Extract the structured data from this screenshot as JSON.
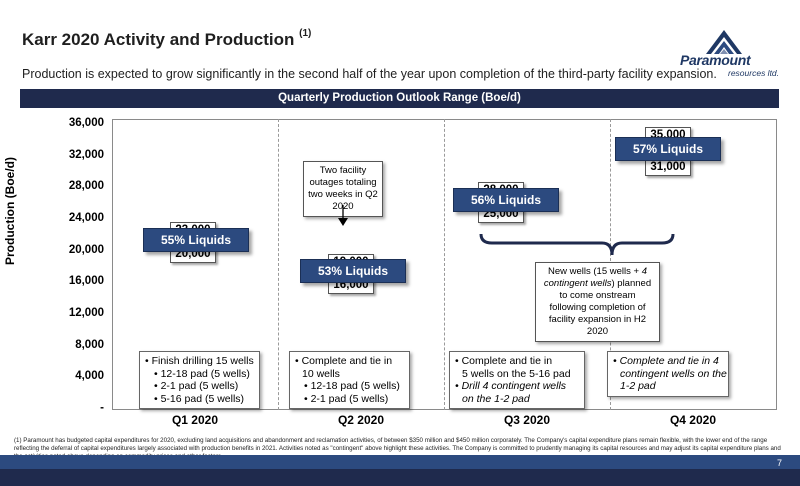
{
  "header": {
    "title": "Karr 2020 Activity and Production",
    "title_sup": "(1)",
    "subtitle": "Production is expected to grow significantly in the second half of the year upon completion of the third-party facility expansion."
  },
  "logo": {
    "name": "Paramount",
    "sub": "resources ltd."
  },
  "banner": "Quarterly Production Outlook Range (Boe/d)",
  "chart_data": {
    "type": "range",
    "title": "Quarterly Production Outlook Range (Boe/d)",
    "ylabel": "Production (Boe/d)",
    "ylim": [
      0,
      36000
    ],
    "yticks": [
      "36,000",
      "32,000",
      "28,000",
      "24,000",
      "20,000",
      "16,000",
      "12,000",
      "8,000",
      "4,000",
      "-"
    ],
    "categories": [
      "Q1 2020",
      "Q2 2020",
      "Q3 2020",
      "Q4 2020"
    ],
    "series": [
      {
        "name": "low",
        "values": [
          20000,
          16000,
          25000,
          31000
        ]
      },
      {
        "name": "high",
        "values": [
          23000,
          19000,
          28000,
          35000
        ]
      }
    ],
    "low_labels": [
      "20,000",
      "16,000",
      "25,000",
      "31,000"
    ],
    "high_labels": [
      "23,000",
      "19,000",
      "28,000",
      "35,000"
    ],
    "liquids": [
      "55% Liquids",
      "53% Liquids",
      "56% Liquids",
      "57% Liquids"
    ],
    "annotations": {
      "outage": "Two facility outages totaling two weeks in Q2 2020",
      "new_wells_pre": "New wells (15 wells + ",
      "new_wells_em": "4 contingent wells",
      "new_wells_post": ") planned to come onstream following completion of facility expansion in H2 2020"
    }
  },
  "activities": {
    "q1": {
      "head": "Finish drilling 15 wells",
      "subs": [
        "12-18 pad (5 wells)",
        "2-1 pad (5 wells)",
        "5-16 pad (5 wells)"
      ]
    },
    "q2": {
      "head1": "Complete and tie in",
      "head2": "10 wells",
      "subs": [
        "12-18 pad (5 wells)",
        "2-1 pad (5 wells)"
      ]
    },
    "q3": {
      "head1": "Complete and tie in",
      "head2": "5 wells on the 5-16 pad",
      "it1": "Drill 4 contingent wells",
      "it2": "on the 1-2 pad"
    },
    "q4": {
      "l1": "Complete and tie in 4",
      "l2": "contingent wells on the",
      "l3": "1-2 pad"
    }
  },
  "footnote": "(1) Paramount has budgeted capital expenditures for 2020, excluding land acquisitions and abandonment and reclamation activities, of between $350 million and $450 million corporately.  The Company's capital expenditure plans remain flexible, with the lower end of the range reflecting the deferral of capital expenditures largely associated with production benefits in 2021.  Activities noted as \"contingent\" above highlight these activities.  The Company is committed to prudently managing its capital resources and may adjust its capital expenditure plans and the activities noted above depending on commodity prices and other factors.",
  "page_number": "7",
  "colors": {
    "navy": "#1f2a4d",
    "blue": "#2c4a7f",
    "white": "#ffffff"
  }
}
